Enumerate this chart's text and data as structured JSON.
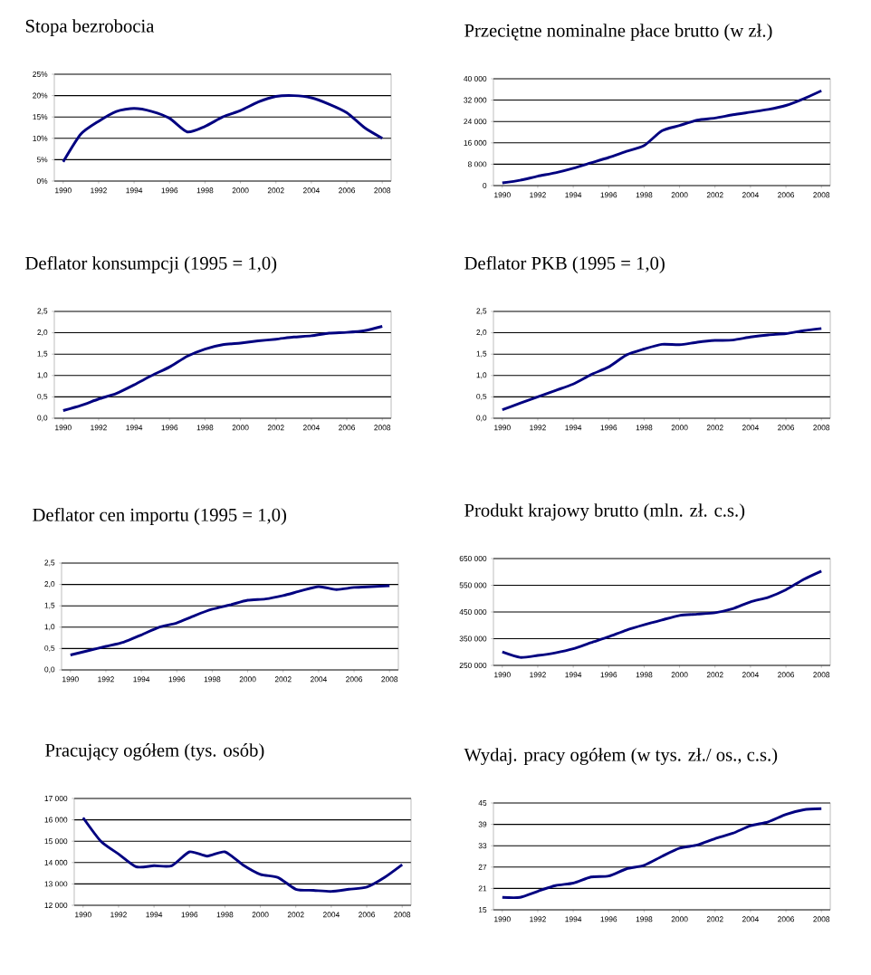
{
  "chart_data": [
    {
      "type": "line",
      "title": "Stopa bezrobocia",
      "x": [
        1990,
        1991,
        1992,
        1993,
        1994,
        1995,
        1996,
        1997,
        1998,
        1999,
        2000,
        2001,
        2002,
        2003,
        2004,
        2005,
        2006,
        2007,
        2008
      ],
      "series": [
        {
          "color": "#000080",
          "values": [
            4.5,
            11,
            14,
            16.3,
            17,
            16.3,
            14.7,
            11.5,
            12.8,
            15,
            16.5,
            18.5,
            19.8,
            20,
            19.5,
            18,
            16,
            12.5,
            10
          ]
        }
      ],
      "xlim": [
        1989.5,
        2008.5
      ],
      "ylim": [
        0,
        25
      ],
      "xticks": [
        1990,
        1992,
        1994,
        1996,
        1998,
        2000,
        2002,
        2004,
        2006,
        2008
      ],
      "yticks": [
        {
          "value": 0,
          "label": "0%"
        },
        {
          "value": 5,
          "label": "5%"
        },
        {
          "value": 10,
          "label": "10%"
        },
        {
          "value": 15,
          "label": "15%"
        },
        {
          "value": 20,
          "label": "20%"
        },
        {
          "value": 25,
          "label": "25%"
        }
      ],
      "grid": "y"
    },
    {
      "type": "line",
      "title": "Przeciętne nominalne płace brutto (w zł.)",
      "x": [
        1990,
        1991,
        1992,
        1993,
        1994,
        1995,
        1996,
        1997,
        1998,
        1999,
        2000,
        2001,
        2002,
        2003,
        2004,
        2005,
        2006,
        2007,
        2008
      ],
      "series": [
        {
          "color": "#000080",
          "values": [
            1000,
            2000,
            3500,
            4800,
            6500,
            8500,
            10500,
            12800,
            15000,
            20500,
            22500,
            24500,
            25300,
            26500,
            27500,
            28500,
            30000,
            32500,
            35500
          ]
        }
      ],
      "xlim": [
        1989.5,
        2008.5
      ],
      "ylim": [
        0,
        40000
      ],
      "xticks": [
        1990,
        1992,
        1994,
        1996,
        1998,
        2000,
        2002,
        2004,
        2006,
        2008
      ],
      "yticks": [
        0,
        {
          "value": 8000,
          "label": "8 000"
        },
        {
          "value": 16000,
          "label": "16 000"
        },
        {
          "value": 24000,
          "label": "24 000"
        },
        {
          "value": 32000,
          "label": "32 000"
        },
        {
          "value": 40000,
          "label": "40 000"
        }
      ],
      "grid": "y"
    },
    {
      "type": "line",
      "title": "Deflator konsumpcji (1995 = 1,0)",
      "x": [
        1990,
        1991,
        1992,
        1993,
        1994,
        1995,
        1996,
        1997,
        1998,
        1999,
        2000,
        2001,
        2002,
        2003,
        2004,
        2005,
        2006,
        2007,
        2008
      ],
      "series": [
        {
          "color": "#000080",
          "values": [
            0.18,
            0.3,
            0.45,
            0.58,
            0.78,
            1.0,
            1.2,
            1.45,
            1.62,
            1.72,
            1.76,
            1.81,
            1.85,
            1.9,
            1.93,
            1.99,
            2.01,
            2.05,
            2.15
          ]
        }
      ],
      "xlim": [
        1989.5,
        2008.5
      ],
      "ylim": [
        0,
        2.5
      ],
      "xticks": [
        1990,
        1992,
        1994,
        1996,
        1998,
        2000,
        2002,
        2004,
        2006,
        2008
      ],
      "yticks": [
        {
          "value": 0,
          "label": "0,0"
        },
        {
          "value": 0.5,
          "label": "0,5"
        },
        {
          "value": 1,
          "label": "1,0"
        },
        {
          "value": 1.5,
          "label": "1,5"
        },
        {
          "value": 2,
          "label": "2,0"
        },
        {
          "value": 2.5,
          "label": "2,5"
        }
      ],
      "grid": "y"
    },
    {
      "type": "line",
      "title": "Deflator PKB (1995 = 1,0)",
      "x": [
        1990,
        1991,
        1992,
        1993,
        1994,
        1995,
        1996,
        1997,
        1998,
        1999,
        2000,
        2001,
        2002,
        2003,
        2004,
        2005,
        2006,
        2007,
        2008
      ],
      "series": [
        {
          "color": "#000080",
          "values": [
            0.2,
            0.35,
            0.5,
            0.65,
            0.8,
            1.02,
            1.2,
            1.48,
            1.62,
            1.73,
            1.72,
            1.78,
            1.82,
            1.83,
            1.9,
            1.95,
            1.98,
            2.05,
            2.1
          ]
        }
      ],
      "xlim": [
        1989.5,
        2008.5
      ],
      "ylim": [
        0,
        2.5
      ],
      "xticks": [
        1990,
        1992,
        1994,
        1996,
        1998,
        2000,
        2002,
        2004,
        2006,
        2008
      ],
      "yticks": [
        {
          "value": 0,
          "label": "0,0"
        },
        {
          "value": 0.5,
          "label": "0,5"
        },
        {
          "value": 1,
          "label": "1,0"
        },
        {
          "value": 1.5,
          "label": "1,5"
        },
        {
          "value": 2,
          "label": "2,0"
        },
        {
          "value": 2.5,
          "label": "2,5"
        }
      ],
      "grid": "y"
    },
    {
      "type": "line",
      "title": "Deflator cen importu (1995 = 1,0)",
      "x": [
        1990,
        1991,
        1992,
        1993,
        1994,
        1995,
        1996,
        1997,
        1998,
        1999,
        2000,
        2001,
        2002,
        2003,
        2004,
        2005,
        2006,
        2007,
        2008
      ],
      "series": [
        {
          "color": "#000080",
          "values": [
            0.35,
            0.45,
            0.55,
            0.65,
            0.82,
            1.0,
            1.1,
            1.27,
            1.42,
            1.52,
            1.63,
            1.66,
            1.74,
            1.85,
            1.95,
            1.88,
            1.93,
            1.95,
            1.97
          ]
        }
      ],
      "xlim": [
        1989.5,
        2008.5
      ],
      "ylim": [
        0,
        2.5
      ],
      "xticks": [
        1990,
        1992,
        1994,
        1996,
        1998,
        2000,
        2002,
        2004,
        2006,
        2008
      ],
      "yticks": [
        {
          "value": 0,
          "label": "0,0"
        },
        {
          "value": 0.5,
          "label": "0,5"
        },
        {
          "value": 1,
          "label": "1,0"
        },
        {
          "value": 1.5,
          "label": "1,5"
        },
        {
          "value": 2,
          "label": "2,0"
        },
        {
          "value": 2.5,
          "label": "2,5"
        }
      ],
      "grid": "y"
    },
    {
      "type": "line",
      "title": "Produkt krajowy brutto (mln. zł. c.s.)",
      "x": [
        1990,
        1991,
        1992,
        1993,
        1994,
        1995,
        1996,
        1997,
        1998,
        1999,
        2000,
        2001,
        2002,
        2003,
        2004,
        2005,
        2006,
        2007,
        2008
      ],
      "series": [
        {
          "color": "#000080",
          "values": [
            300000,
            280000,
            287000,
            297000,
            312000,
            335000,
            357000,
            382000,
            402000,
            420000,
            437000,
            442000,
            447000,
            462000,
            488000,
            505000,
            533000,
            572000,
            603000
          ]
        }
      ],
      "xlim": [
        1989.5,
        2008.5
      ],
      "ylim": [
        250000,
        650000
      ],
      "xticks": [
        1990,
        1992,
        1994,
        1996,
        1998,
        2000,
        2002,
        2004,
        2006,
        2008
      ],
      "yticks": [
        {
          "value": 250000,
          "label": "250 000"
        },
        {
          "value": 350000,
          "label": "350 000"
        },
        {
          "value": 450000,
          "label": "450 000"
        },
        {
          "value": 550000,
          "label": "550 000"
        },
        {
          "value": 650000,
          "label": "650 000"
        }
      ],
      "grid": "y"
    },
    {
      "type": "line",
      "title": "Pracujący ogółem (tys. osób)",
      "x": [
        1990,
        1991,
        1992,
        1993,
        1994,
        1995,
        1996,
        1997,
        1998,
        1999,
        2000,
        2001,
        2002,
        2003,
        2004,
        2005,
        2006,
        2007,
        2008
      ],
      "series": [
        {
          "color": "#000080",
          "values": [
            16100,
            15000,
            14400,
            13800,
            13850,
            13850,
            14500,
            14300,
            14500,
            13900,
            13450,
            13300,
            12750,
            12700,
            12650,
            12750,
            12850,
            13300,
            13900
          ]
        }
      ],
      "xlim": [
        1989.5,
        2008.5
      ],
      "ylim": [
        12000,
        17000
      ],
      "xticks": [
        1990,
        1992,
        1994,
        1996,
        1998,
        2000,
        2002,
        2004,
        2006,
        2008
      ],
      "yticks": [
        {
          "value": 12000,
          "label": "12 000"
        },
        {
          "value": 13000,
          "label": "13 000"
        },
        {
          "value": 14000,
          "label": "14 000"
        },
        {
          "value": 15000,
          "label": "15 000"
        },
        {
          "value": 16000,
          "label": "16 000"
        },
        {
          "value": 17000,
          "label": "17 000"
        }
      ],
      "grid": "y"
    },
    {
      "type": "line",
      "title": "Wydaj.  pracy ogółem (w tys. zł./ os., c.s.)",
      "x": [
        1990,
        1991,
        1992,
        1993,
        1994,
        1995,
        1996,
        1997,
        1998,
        1999,
        2000,
        2001,
        2002,
        2003,
        2004,
        2005,
        2006,
        2007,
        2008
      ],
      "series": [
        {
          "color": "#000080",
          "values": [
            18.5,
            18.5,
            20.2,
            21.8,
            22.5,
            24.2,
            24.5,
            26.5,
            27.5,
            30,
            32.3,
            33.2,
            35,
            36.5,
            38.6,
            39.7,
            41.8,
            43.1,
            43.4
          ]
        }
      ],
      "xlim": [
        1989.5,
        2008.5
      ],
      "ylim": [
        15,
        45
      ],
      "xticks": [
        1990,
        1992,
        1994,
        1996,
        1998,
        2000,
        2002,
        2004,
        2006,
        2008
      ],
      "yticks": [
        15,
        21,
        27,
        33,
        39,
        45
      ],
      "grid": "y"
    }
  ]
}
